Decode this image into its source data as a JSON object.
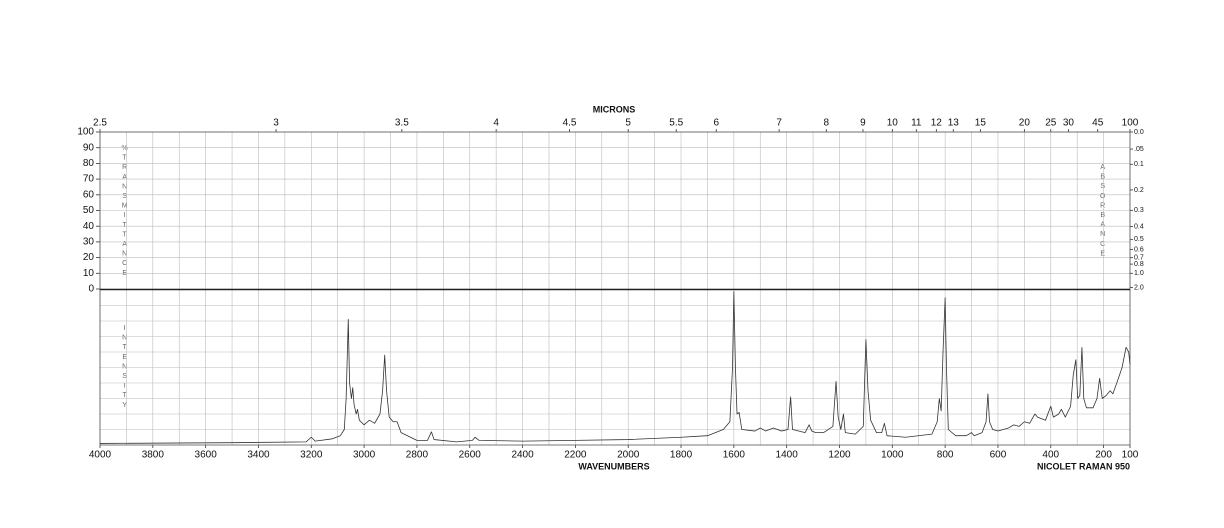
{
  "chart_data": {
    "type": "line",
    "top_axis_label": "MICRONS",
    "xlabel": "WAVENUMBERS",
    "instrument": "NICOLET RAMAN 950",
    "left_axis_label": "%TRANSMITTANCE",
    "right_axis_label": "ABSORBANCE",
    "lower_axis_label": "INTENSITY",
    "xlim": [
      4000,
      100
    ],
    "xticks": [
      4000,
      3800,
      3600,
      3400,
      3200,
      3000,
      2800,
      2600,
      2400,
      2200,
      2000,
      1800,
      1600,
      1400,
      1200,
      1000,
      800,
      600,
      400,
      200,
      100
    ],
    "micron_ticks": [
      2.5,
      3,
      3.5,
      4,
      4.5,
      5,
      5.5,
      6,
      7,
      8,
      9,
      10,
      11,
      12,
      13,
      15,
      20,
      25,
      30,
      45,
      100
    ],
    "transmittance_lim": [
      0,
      100
    ],
    "transmittance_ticks": [
      100,
      90,
      80,
      70,
      60,
      50,
      40,
      30,
      20,
      10,
      0
    ],
    "absorbance_ticks": [
      {
        "value": 0,
        "label": "0.0"
      },
      {
        "value": 0.05,
        "label": ".05"
      },
      0.1,
      0.2,
      0.3,
      0.4,
      0.5,
      0.6,
      0.7,
      0.8,
      {
        "value": 1,
        "label": "1.0"
      },
      {
        "value": 2,
        "label": "2.0"
      }
    ],
    "ylim": [
      0,
      10
    ],
    "color": "#333333",
    "x": [
      4000,
      3500,
      3220,
      3200,
      3185,
      3120,
      3090,
      3075,
      3068,
      3060,
      3055,
      3048,
      3043,
      3038,
      3030,
      3025,
      3018,
      3000,
      2980,
      2960,
      2940,
      2930,
      2922,
      2915,
      2905,
      2890,
      2875,
      2860,
      2800,
      2760,
      2745,
      2735,
      2650,
      2590,
      2580,
      2565,
      2400,
      2200,
      2000,
      1800,
      1700,
      1640,
      1615,
      1605,
      1600,
      1594,
      1588,
      1580,
      1570,
      1520,
      1500,
      1480,
      1450,
      1420,
      1395,
      1385,
      1378,
      1330,
      1315,
      1305,
      1290,
      1260,
      1225,
      1213,
      1205,
      1195,
      1185,
      1178,
      1140,
      1110,
      1100,
      1092,
      1082,
      1060,
      1040,
      1030,
      1020,
      950,
      850,
      830,
      822,
      815,
      808,
      800,
      795,
      788,
      760,
      720,
      700,
      690,
      660,
      645,
      638,
      632,
      620,
      600,
      560,
      540,
      520,
      500,
      480,
      460,
      450,
      420,
      400,
      390,
      370,
      360,
      345,
      325,
      315,
      305,
      298,
      290,
      282,
      275,
      265,
      240,
      225,
      215,
      205,
      190,
      175,
      165,
      150,
      130,
      115,
      105,
      100
    ],
    "values": [
      0.1,
      0.15,
      0.2,
      0.5,
      0.25,
      0.4,
      0.6,
      1.0,
      3.0,
      8.1,
      4.0,
      3.0,
      3.7,
      2.6,
      2.0,
      2.3,
      1.6,
      1.3,
      1.6,
      1.4,
      2.0,
      3.5,
      5.8,
      3.5,
      1.8,
      1.5,
      1.5,
      0.8,
      0.3,
      0.3,
      0.85,
      0.35,
      0.2,
      0.3,
      0.5,
      0.3,
      0.25,
      0.3,
      0.35,
      0.5,
      0.6,
      1.0,
      1.5,
      5.0,
      9.9,
      5.0,
      2.0,
      2.1,
      1.0,
      0.9,
      1.1,
      0.9,
      1.1,
      0.9,
      1.0,
      3.1,
      1.0,
      0.8,
      1.3,
      0.9,
      0.8,
      0.8,
      1.2,
      4.1,
      1.8,
      1.0,
      2.0,
      0.8,
      0.7,
      1.2,
      6.8,
      3.5,
      1.6,
      0.8,
      0.8,
      1.4,
      0.6,
      0.5,
      0.7,
      1.5,
      3.0,
      2.2,
      6.0,
      9.5,
      5.0,
      1.0,
      0.6,
      0.6,
      0.8,
      0.6,
      0.8,
      1.5,
      3.3,
      1.5,
      1.0,
      0.9,
      1.1,
      1.3,
      1.2,
      1.5,
      1.4,
      2.0,
      1.8,
      1.6,
      2.5,
      1.8,
      2.0,
      2.3,
      1.8,
      2.5,
      4.5,
      5.5,
      3.0,
      3.2,
      6.3,
      3.0,
      2.4,
      2.4,
      3.0,
      4.3,
      3.0,
      3.2,
      3.5,
      3.3,
      4.0,
      5.0,
      6.3,
      6.0,
      5.2
    ]
  }
}
